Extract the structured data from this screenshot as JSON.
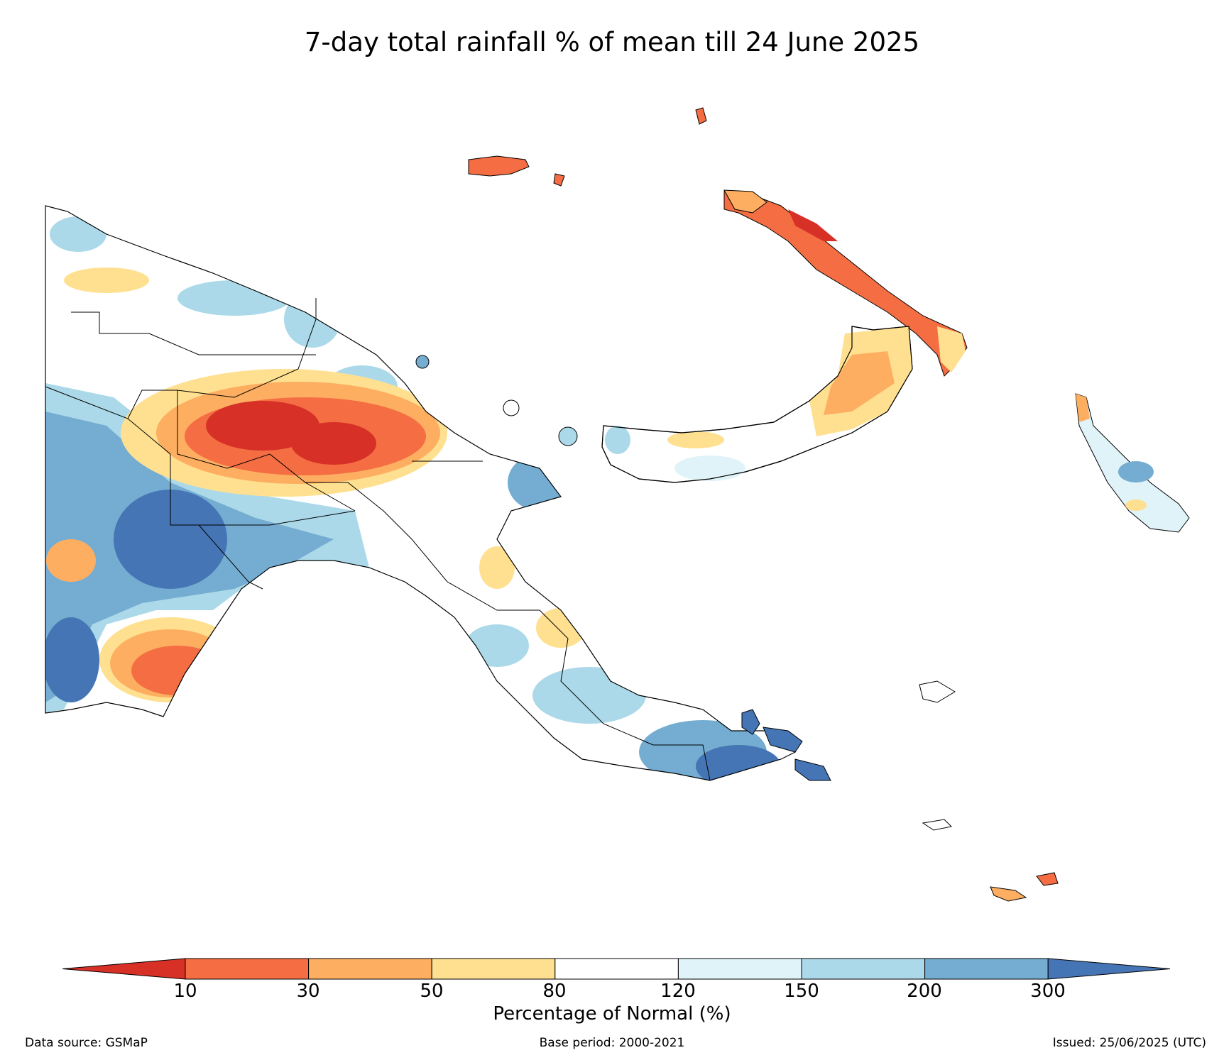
{
  "title": "7-day total rainfall % of mean till 24 June 2025",
  "colorbar": {
    "title": "Percentage of Normal (%)",
    "ticks": [
      "10",
      "30",
      "50",
      "80",
      "120",
      "150",
      "200",
      "300"
    ],
    "bins": [
      {
        "range": "<10",
        "color": "#d73027"
      },
      {
        "range": "10-30",
        "color": "#f46d43"
      },
      {
        "range": "30-50",
        "color": "#fdae61"
      },
      {
        "range": "50-80",
        "color": "#fee090"
      },
      {
        "range": "80-120",
        "color": "#ffffff"
      },
      {
        "range": "120-150",
        "color": "#e0f3f8"
      },
      {
        "range": "150-200",
        "color": "#abd9e9"
      },
      {
        "range": "200-300",
        "color": "#74add1"
      },
      {
        "range": ">300",
        "color": "#4575b4"
      }
    ]
  },
  "footer": {
    "source": "Data source: GSMaP",
    "base_period": "Base period: 2000-2021",
    "issued": "Issued: 25/06/2025 (UTC)"
  }
}
